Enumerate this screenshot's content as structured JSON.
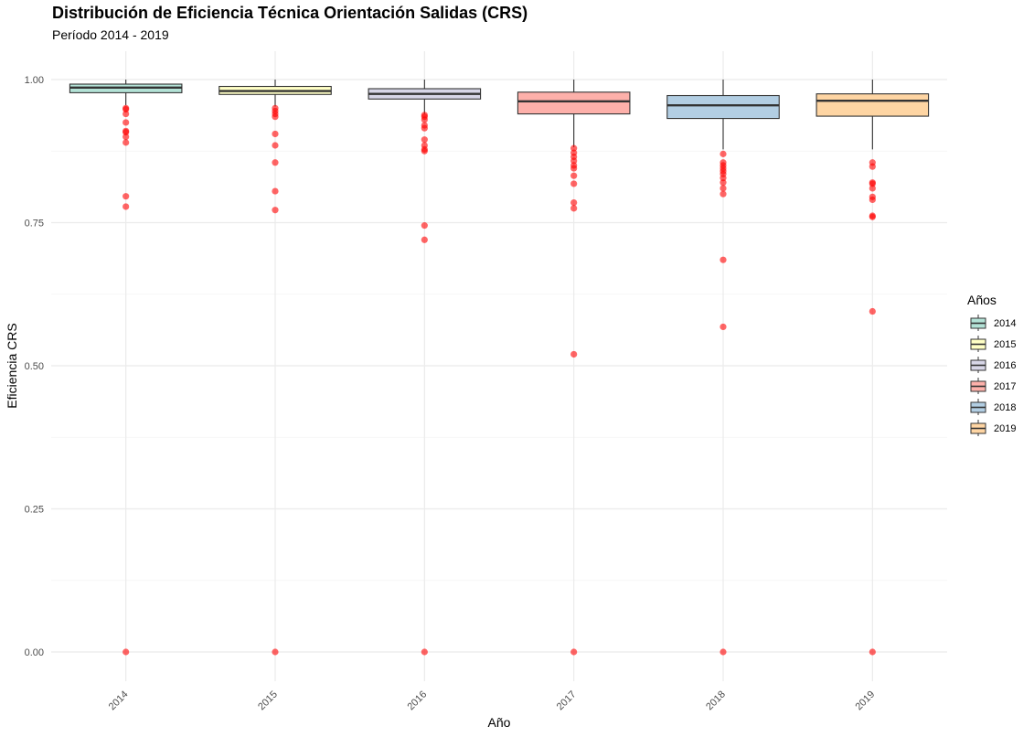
{
  "chart_data": {
    "type": "box",
    "title": "Distribución de Eficiencia Técnica Orientación Salidas (CRS)",
    "subtitle": "Período 2014 - 2019",
    "xlabel": "Año",
    "ylabel": "Eficiencia CRS",
    "ylim": [
      -0.05,
      1.05
    ],
    "yticks": [
      0.0,
      0.25,
      0.5,
      0.75,
      1.0
    ],
    "ytick_labels": [
      "0.00",
      "0.25",
      "0.50",
      "0.75",
      "1.00"
    ],
    "grid": true,
    "legend": {
      "title": "Años",
      "position": "right"
    },
    "outlier_color": "#ff0000",
    "categories": [
      "2014",
      "2015",
      "2016",
      "2017",
      "2018",
      "2019"
    ],
    "series": [
      {
        "name": "2014",
        "color": "#b3e2d6",
        "q1": 0.977,
        "median": 0.986,
        "q3": 0.992,
        "whisker_low": 0.955,
        "whisker_high": 1.0,
        "outliers": [
          0.95,
          0.948,
          0.94,
          0.925,
          0.91,
          0.908,
          0.9,
          0.89,
          0.796,
          0.778,
          0.0
        ]
      },
      {
        "name": "2015",
        "color": "#ffffc5",
        "q1": 0.974,
        "median": 0.98,
        "q3": 0.988,
        "whisker_low": 0.953,
        "whisker_high": 1.0,
        "outliers": [
          0.95,
          0.945,
          0.94,
          0.935,
          0.905,
          0.885,
          0.855,
          0.805,
          0.772,
          0.0
        ]
      },
      {
        "name": "2016",
        "color": "#d7d6e7",
        "q1": 0.966,
        "median": 0.975,
        "q3": 0.984,
        "whisker_low": 0.94,
        "whisker_high": 1.0,
        "outliers": [
          0.938,
          0.935,
          0.93,
          0.92,
          0.915,
          0.895,
          0.885,
          0.878,
          0.875,
          0.745,
          0.72,
          0.0
        ]
      },
      {
        "name": "2017",
        "color": "#fdb0aa",
        "q1": 0.94,
        "median": 0.962,
        "q3": 0.978,
        "whisker_low": 0.882,
        "whisker_high": 1.0,
        "outliers": [
          0.88,
          0.872,
          0.865,
          0.858,
          0.85,
          0.845,
          0.832,
          0.818,
          0.785,
          0.775,
          0.52,
          0.0
        ]
      },
      {
        "name": "2018",
        "color": "#b2cee3",
        "q1": 0.932,
        "median": 0.955,
        "q3": 0.972,
        "whisker_low": 0.878,
        "whisker_high": 1.0,
        "outliers": [
          0.87,
          0.855,
          0.85,
          0.845,
          0.84,
          0.835,
          0.828,
          0.82,
          0.81,
          0.8,
          0.685,
          0.568,
          0.0
        ]
      },
      {
        "name": "2019",
        "color": "#fed5a3",
        "q1": 0.936,
        "median": 0.963,
        "q3": 0.975,
        "whisker_low": 0.878,
        "whisker_high": 1.0,
        "outliers": [
          0.855,
          0.848,
          0.82,
          0.818,
          0.81,
          0.795,
          0.79,
          0.762,
          0.76,
          0.595,
          0.0
        ]
      }
    ]
  }
}
